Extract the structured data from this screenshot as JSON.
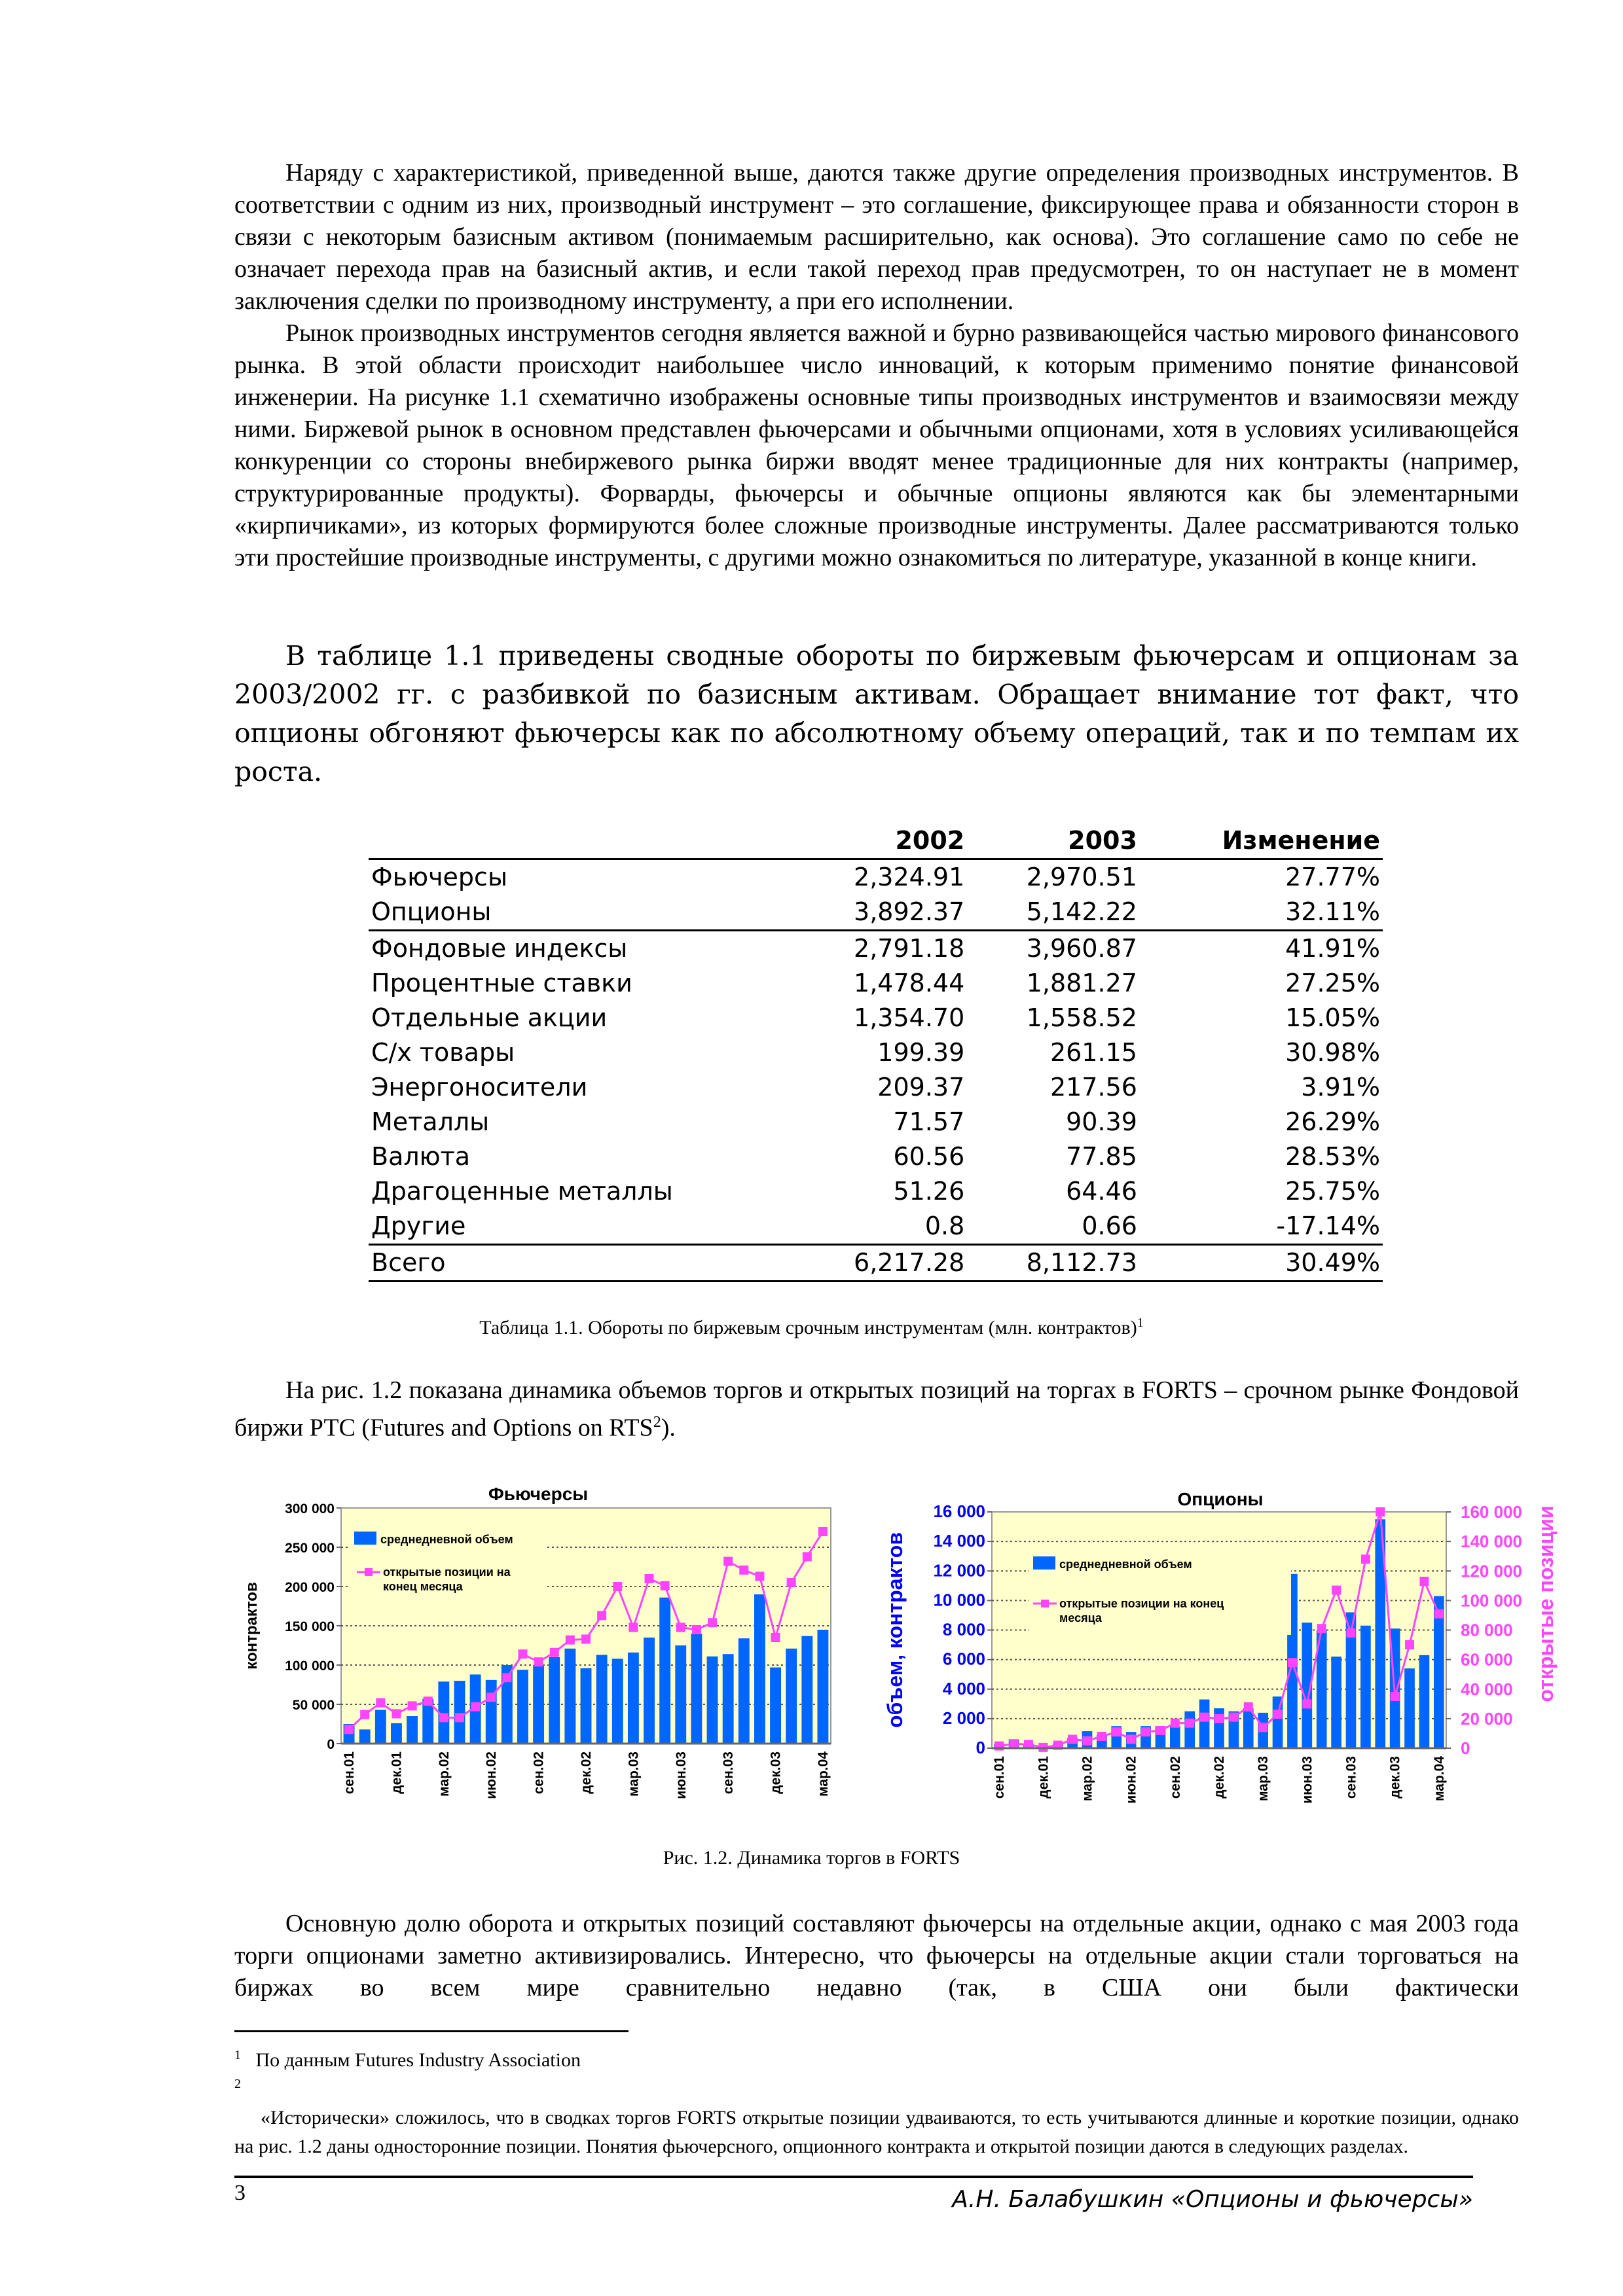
{
  "body": {
    "p1": "Наряду с характеристикой, приведенной выше, даются также другие определения производных инструментов. В соответствии с одним из них, производный инструмент – это соглашение, фиксирующее права и обязанности сторон в связи с некоторым базисным активом (понимаемым расширительно, как основа). Это соглашение само по себе не означает перехода прав на базисный актив, и если такой переход прав предусмотрен, то он наступает не в момент заключения сделки по производному инструменту, а при его исполнении.",
    "p2": "Рынок производных инструментов сегодня является важной и бурно развивающейся частью мирового финансового рынка. В этой области происходит наибольшее число инноваций, к которым применимо понятие финансовой инженерии. На рисунке 1.1 схематично изображены основные типы производных инструментов и взаимосвязи между ними. Биржевой рынок в основном представлен фьючерсами и обычными опционами, хотя в условиях усиливающейся конкуренции со стороны внебиржевого рынка биржи вводят менее традиционные для них контракты (например, структурированные продукты). Форварды, фьючерсы и обычные опционы являются как бы элементарными «кирпичиками», из которых формируются более сложные производные инструменты. Далее рассматриваются только эти простейшие производные инструменты, с другими можно ознакомиться по литературе, указанной в конце книги.",
    "p3": "В таблице 1.1 приведены сводные обороты по биржевым фьючерсам и опционам за 2003/2002 гг. с разбивкой по базисным активам. Обращает внимание тот факт, что опционы обгоняют фьючерсы как по абсолютному объему операций, так и по темпам их роста.",
    "p4_text": "На рис. 1.2 показана динамика объемов торгов и открытых позиций на торгах в FORTS – срочном рынке Фондовой биржи РТС (Futures and Options on RTS",
    "p4_sup": "2",
    "p4_end": ").",
    "p5": "Основную долю оборота и открытых позиций составляют фьючерсы на отдельные акции, однако с мая 2003 года торги опционами заметно активизировались. Интересно, что фьючерсы на отдельные акции стали торговаться на биржах во всем мире сравнительно недавно (так, в США они были фактически"
  },
  "table": {
    "headers": [
      "",
      "2002",
      "2003",
      "Изменение"
    ],
    "rows": [
      [
        "Фьючерсы",
        "2,324.91",
        "2,970.51",
        "27.77%"
      ],
      [
        "Опционы",
        "3,892.37",
        "5,142.22",
        "32.11%"
      ],
      [
        "Фондовые индексы",
        "2,791.18",
        "3,960.87",
        "41.91%"
      ],
      [
        "Процентные ставки",
        "1,478.44",
        "1,881.27",
        "27.25%"
      ],
      [
        "Отдельные акции",
        "1,354.70",
        "1,558.52",
        "15.05%"
      ],
      [
        "С/х товары",
        "199.39",
        "261.15",
        "30.98%"
      ],
      [
        "Энергоносители",
        "209.37",
        "217.56",
        "3.91%"
      ],
      [
        "Металлы",
        "71.57",
        "90.39",
        "26.29%"
      ],
      [
        "Валюта",
        "60.56",
        "77.85",
        "28.53%"
      ],
      [
        "Драгоценные металлы",
        "51.26",
        "64.46",
        "25.75%"
      ],
      [
        "Другие",
        "0.8",
        "0.66",
        "-17.14%"
      ],
      [
        "Всего",
        "6,217.28",
        "8,112.73",
        "30.49%"
      ]
    ],
    "caption": "Таблица 1.1. Обороты по биржевым срочным инструментам (млн. контрактов)",
    "caption_sup": "1"
  },
  "figure_caption": "Рис. 1.2. Динамика торгов в FORTS",
  "chart_data": [
    {
      "type": "bar+line",
      "title": "Фьючерсы",
      "ylabel": "контрактов",
      "ylim": [
        0,
        300000
      ],
      "yticks": [
        "0",
        "50 000",
        "100 000",
        "150 000",
        "200 000",
        "250 000",
        "300 000"
      ],
      "xtick_labels": [
        "сен.01",
        "дек.01",
        "мар.02",
        "июн.02",
        "сен.02",
        "дек.02",
        "мар.03",
        "июн.03",
        "сен.03",
        "дек.03",
        "мар.04"
      ],
      "grid": true,
      "legend": "top-left",
      "colors": {
        "bars": "#0066ff",
        "line": "#ff44ff",
        "plot_bg": "#ffffcc"
      },
      "series": [
        {
          "name": "среднедневной объем",
          "kind": "bar",
          "values": [
            25000,
            18000,
            43000,
            26000,
            35000,
            57000,
            79000,
            80000,
            88000,
            81000,
            100000,
            94000,
            100000,
            110000,
            121000,
            96000,
            113000,
            108000,
            116000,
            135000,
            186000,
            125000,
            140000,
            111000,
            114000,
            134000,
            190000,
            97000,
            121000,
            137000,
            145000
          ]
        },
        {
          "name": "открытые позиции на конец месяца",
          "kind": "line",
          "values": [
            18000,
            37000,
            52000,
            38000,
            48000,
            54000,
            33000,
            33000,
            47000,
            59000,
            84000,
            114000,
            104000,
            116000,
            132000,
            133000,
            163000,
            200000,
            148000,
            210000,
            201000,
            148000,
            145000,
            154000,
            232000,
            221000,
            213000,
            135000,
            205000,
            238000,
            270000
          ]
        }
      ]
    },
    {
      "type": "bar+line",
      "title": "Опционы",
      "ylabel": "объем, контрактов",
      "y2label": "открытые позиции",
      "ylim": [
        0,
        16000
      ],
      "y2lim": [
        0,
        160000
      ],
      "yticks": [
        "0",
        "2 000",
        "4 000",
        "6 000",
        "8 000",
        "10 000",
        "12 000",
        "14 000",
        "16 000"
      ],
      "y2ticks": [
        "0",
        "20 000",
        "40 000",
        "60 000",
        "80 000",
        "100 000",
        "120 000",
        "140 000",
        "160 000"
      ],
      "xtick_labels": [
        "сен.01",
        "дек.01",
        "мар.02",
        "июн.02",
        "сен.02",
        "дек.02",
        "мар.03",
        "июн.03",
        "сен.03",
        "дек.03",
        "мар.04"
      ],
      "grid": true,
      "legend": "top-left",
      "colors": {
        "bars": "#0066ff",
        "line": "#ff44ff",
        "left_axis": "#0000ff",
        "right_axis": "#ff44ff",
        "plot_bg": "#ffffcc"
      },
      "series": [
        {
          "name": "среднедневной объем",
          "kind": "bar",
          "axis": "left",
          "values": [
            300,
            600,
            300,
            200,
            300,
            700,
            1150,
            900,
            1500,
            1100,
            1500,
            1500,
            1500,
            2500,
            3300,
            2700,
            2500,
            2700,
            2400,
            3500,
            11800,
            8500,
            8000,
            6200,
            9200,
            8300,
            15500,
            8100,
            5400,
            6300,
            10300
          ]
        },
        {
          "name": "открытые позиции на конец месяца",
          "kind": "line",
          "axis": "right",
          "values": [
            1500,
            3000,
            2500,
            500,
            2000,
            6000,
            5000,
            8000,
            11000,
            6000,
            11000,
            12000,
            17000,
            17000,
            21000,
            20000,
            21000,
            28000,
            14000,
            23000,
            58000,
            30000,
            81000,
            107000,
            78000,
            128000,
            160000,
            35000,
            70000,
            113000,
            91000
          ]
        }
      ]
    }
  ],
  "footnotes": [
    {
      "mark": "1",
      "text": "По данным Futures Industry Association"
    },
    {
      "mark": "2",
      "text": "«Исторически» сложилось, что в сводках торгов FORTS открытые позиции удваиваются, то есть учитываются длинные и короткие позиции, однако на рис. 1.2 даны односторонние позиции. Понятия фьючерсного, опционного контракта и открытой позиции даются в следующих разделах."
    }
  ],
  "footer": {
    "page_number": "3",
    "running_title": "А.Н. Балабушкин «Опционы и фьючерсы»"
  }
}
